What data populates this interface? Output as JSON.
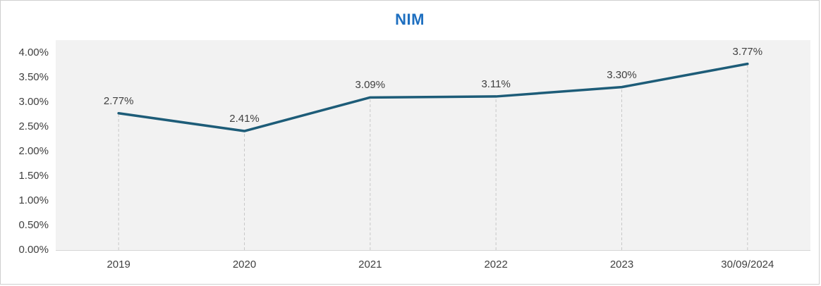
{
  "chart": {
    "title": "NIM"
  },
  "chart_data": {
    "type": "line",
    "title": "NIM",
    "categories": [
      "2019",
      "2020",
      "2021",
      "2022",
      "2023",
      "30/09/2024"
    ],
    "series": [
      {
        "name": "NIM",
        "values": [
          2.77,
          2.41,
          3.09,
          3.11,
          3.3,
          3.77
        ]
      }
    ],
    "data_labels": [
      "2.77%",
      "2.41%",
      "3.09%",
      "3.11%",
      "3.30%",
      "3.77%"
    ],
    "yticks": [
      {
        "value": 0,
        "label": "0.00%"
      },
      {
        "value": 0.5,
        "label": "0.50%"
      },
      {
        "value": 1,
        "label": "1.00%"
      },
      {
        "value": 1.5,
        "label": "1.50%"
      },
      {
        "value": 2,
        "label": "2.00%"
      },
      {
        "value": 2.5,
        "label": "2.50%"
      },
      {
        "value": 3,
        "label": "3.00%"
      },
      {
        "value": 3.5,
        "label": "3.50%"
      },
      {
        "value": 4,
        "label": "4.00%"
      }
    ],
    "ylim": [
      0,
      4.25
    ],
    "xlabel": "",
    "ylabel": "",
    "grid": "vertical-dashed-drop-lines",
    "legend": "none",
    "colors": {
      "line": "#1d5c78",
      "title": "#1e6fc0",
      "plot_background": "#f2f2f2",
      "grid_line": "#c9c9c9",
      "axis_line": "#d6d6d6",
      "text": "#404040"
    }
  }
}
